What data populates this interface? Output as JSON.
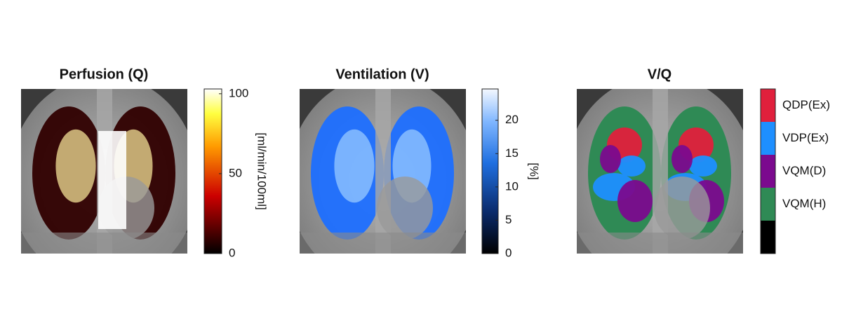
{
  "chart_data": [
    {
      "type": "colorbar-image",
      "title": "Perfusion (Q)",
      "colormap": "hot",
      "clim": [
        0,
        103
      ],
      "ticks": [
        0,
        50,
        100
      ],
      "label": "[ml/min/100ml]"
    },
    {
      "type": "colorbar-image",
      "title": "Ventilation (V)",
      "colormap": "blues",
      "clim": [
        0,
        24.7
      ],
      "ticks": [
        0,
        5,
        10,
        15,
        20
      ],
      "label": "[%]"
    },
    {
      "type": "category-image",
      "title": "V/Q",
      "categories": [
        "QDP(Ex)",
        "VDP(Ex)",
        "VQM(D)",
        "VQM(H)",
        null
      ],
      "colors": [
        "#e0203c",
        "#1e8fff",
        "#7b0a8e",
        "#2f8a55",
        "#000000"
      ]
    }
  ]
}
